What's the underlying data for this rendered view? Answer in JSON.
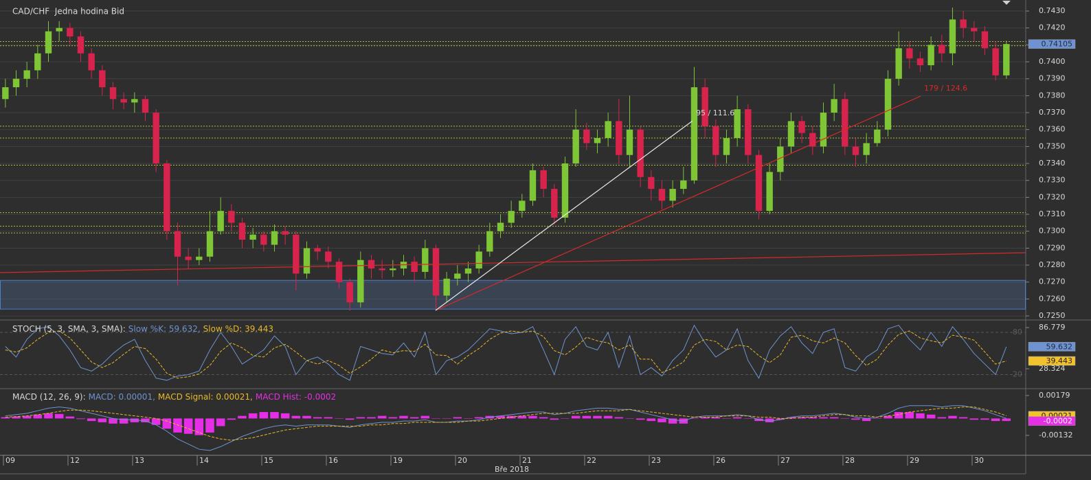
{
  "chart_data": [
    {
      "type": "candlestick",
      "title": "CAD/CHF  Jedna hodina Bid",
      "open": [
        0.7378,
        0.7385,
        0.739,
        0.7395,
        0.7405,
        0.7418,
        0.742,
        0.7415,
        0.7405,
        0.7395,
        0.7385,
        0.7378,
        0.7376,
        0.7378,
        0.737,
        0.734,
        0.73,
        0.7285,
        0.7283,
        0.7285,
        0.73,
        0.7312,
        0.7305,
        0.7295,
        0.7298,
        0.7292,
        0.73,
        0.7298,
        0.7275,
        0.729,
        0.7288,
        0.7282,
        0.727,
        0.7258,
        0.7283,
        0.7278,
        0.7277,
        0.7278,
        0.7282,
        0.7276,
        0.729,
        0.7262,
        0.7272,
        0.7275,
        0.7278,
        0.7288,
        0.73,
        0.7305,
        0.7312,
        0.7318,
        0.7336,
        0.7325,
        0.7308,
        0.734,
        0.736,
        0.7352,
        0.7355,
        0.7365,
        0.7345,
        0.736,
        0.7332,
        0.7325,
        0.7318,
        0.7325,
        0.733,
        0.7385,
        0.7362,
        0.7345,
        0.7355,
        0.7372,
        0.7345,
        0.7312,
        0.7335,
        0.735,
        0.7365,
        0.7358,
        0.735,
        0.737,
        0.7378,
        0.735,
        0.7345,
        0.7352,
        0.736,
        0.739,
        0.7408,
        0.7402,
        0.7398,
        0.741,
        0.7405,
        0.7425,
        0.742,
        0.7418,
        0.7408,
        0.7392
      ],
      "high": [
        0.739,
        0.7395,
        0.74,
        0.741,
        0.7424,
        0.7424,
        0.7423,
        0.7418,
        0.7408,
        0.7398,
        0.7388,
        0.7382,
        0.7382,
        0.738,
        0.7372,
        0.7342,
        0.7305,
        0.729,
        0.729,
        0.7312,
        0.732,
        0.7316,
        0.7308,
        0.7302,
        0.73,
        0.7304,
        0.7303,
        0.73,
        0.7294,
        0.7292,
        0.7291,
        0.7284,
        0.7272,
        0.7288,
        0.7286,
        0.7283,
        0.7283,
        0.7286,
        0.7285,
        0.7295,
        0.7292,
        0.7276,
        0.728,
        0.7282,
        0.7292,
        0.7305,
        0.731,
        0.7318,
        0.7322,
        0.734,
        0.7338,
        0.7328,
        0.7344,
        0.7372,
        0.7364,
        0.736,
        0.737,
        0.7378,
        0.738,
        0.7362,
        0.7336,
        0.733,
        0.733,
        0.7338,
        0.7397,
        0.739,
        0.7366,
        0.736,
        0.738,
        0.7375,
        0.7348,
        0.734,
        0.7355,
        0.737,
        0.7368,
        0.7362,
        0.7376,
        0.7387,
        0.7382,
        0.7355,
        0.7358,
        0.7365,
        0.7395,
        0.7418,
        0.7412,
        0.7406,
        0.7415,
        0.7416,
        0.7432,
        0.743,
        0.7424,
        0.7421,
        0.7412,
        0.74125
      ],
      "low": [
        0.7373,
        0.738,
        0.7385,
        0.739,
        0.74,
        0.7412,
        0.741,
        0.74,
        0.739,
        0.738,
        0.7372,
        0.7372,
        0.737,
        0.7365,
        0.7335,
        0.7295,
        0.7268,
        0.7278,
        0.728,
        0.7282,
        0.7298,
        0.73,
        0.729,
        0.729,
        0.7288,
        0.7288,
        0.7292,
        0.7265,
        0.7272,
        0.7283,
        0.7278,
        0.7266,
        0.7253,
        0.7255,
        0.7272,
        0.7272,
        0.7273,
        0.7274,
        0.727,
        0.7272,
        0.7254,
        0.7258,
        0.7268,
        0.727,
        0.7275,
        0.7285,
        0.7296,
        0.7302,
        0.7308,
        0.7315,
        0.732,
        0.7304,
        0.7305,
        0.7338,
        0.7348,
        0.7346,
        0.735,
        0.734,
        0.7338,
        0.7326,
        0.7318,
        0.7313,
        0.7314,
        0.7322,
        0.7328,
        0.7355,
        0.7338,
        0.734,
        0.735,
        0.734,
        0.7307,
        0.731,
        0.733,
        0.7346,
        0.7352,
        0.7345,
        0.7346,
        0.7365,
        0.7345,
        0.7338,
        0.734,
        0.735,
        0.7356,
        0.7386,
        0.7396,
        0.7394,
        0.7395,
        0.74,
        0.7398,
        0.7414,
        0.7412,
        0.7404,
        0.7389,
        0.739
      ],
      "close": [
        0.7385,
        0.739,
        0.7395,
        0.7405,
        0.7418,
        0.742,
        0.7415,
        0.7405,
        0.7395,
        0.7385,
        0.7378,
        0.7376,
        0.7378,
        0.737,
        0.734,
        0.73,
        0.7285,
        0.7283,
        0.7285,
        0.73,
        0.7312,
        0.7305,
        0.7295,
        0.7298,
        0.7292,
        0.73,
        0.7298,
        0.7275,
        0.729,
        0.7288,
        0.7282,
        0.727,
        0.7258,
        0.7283,
        0.7278,
        0.7277,
        0.7278,
        0.7282,
        0.7276,
        0.729,
        0.7262,
        0.7272,
        0.7275,
        0.7278,
        0.7288,
        0.73,
        0.7305,
        0.7312,
        0.7318,
        0.7336,
        0.7325,
        0.7308,
        0.734,
        0.736,
        0.7352,
        0.7355,
        0.7365,
        0.7345,
        0.736,
        0.7332,
        0.7325,
        0.7318,
        0.7325,
        0.733,
        0.7385,
        0.7362,
        0.7345,
        0.7355,
        0.7372,
        0.7345,
        0.7312,
        0.7335,
        0.735,
        0.7365,
        0.7358,
        0.735,
        0.737,
        0.7378,
        0.735,
        0.7345,
        0.7352,
        0.736,
        0.739,
        0.7408,
        0.7402,
        0.7398,
        0.741,
        0.7405,
        0.7425,
        0.742,
        0.7418,
        0.7408,
        0.7392,
        0.74105
      ],
      "up_color": "#7ec636",
      "down_color": "#d8244c",
      "xlim": [
        -0.5,
        94.8
      ],
      "xticks": [
        {
          "value": -0.5,
          "label": "09"
        },
        {
          "value": 5.5,
          "label": "12"
        },
        {
          "value": 11.5,
          "label": "13"
        },
        {
          "value": 17.5,
          "label": "14"
        },
        {
          "value": 23.5,
          "label": "15"
        },
        {
          "value": 29.5,
          "label": "16"
        },
        {
          "value": 35.5,
          "label": "19"
        },
        {
          "value": 41.5,
          "label": "20"
        },
        {
          "value": 47.5,
          "label": "21"
        },
        {
          "value": 53.5,
          "label": "22"
        },
        {
          "value": 59.5,
          "label": "23"
        },
        {
          "value": 65.5,
          "label": "26"
        },
        {
          "value": 71.5,
          "label": "27"
        },
        {
          "value": 77.5,
          "label": "28"
        },
        {
          "value": 83.5,
          "label": "29"
        },
        {
          "value": 89.5,
          "label": "30"
        }
      ],
      "xlabel": "Bře 2018",
      "ylim": [
        0.7248,
        0.74365
      ],
      "yticks": [
        {
          "value": 0.725,
          "label": "0.7250"
        },
        {
          "value": 0.726,
          "label": "0.7260"
        },
        {
          "value": 0.727,
          "label": "0.7270"
        },
        {
          "value": 0.728,
          "label": "0.7280"
        },
        {
          "value": 0.729,
          "label": "0.7290"
        },
        {
          "value": 0.73,
          "label": "0.7300"
        },
        {
          "value": 0.731,
          "label": "0.7310"
        },
        {
          "value": 0.732,
          "label": "0.7320"
        },
        {
          "value": 0.733,
          "label": "0.7330"
        },
        {
          "value": 0.734,
          "label": "0.7340"
        },
        {
          "value": 0.735,
          "label": "0.7350"
        },
        {
          "value": 0.736,
          "label": "0.7360"
        },
        {
          "value": 0.737,
          "label": "0.7370"
        },
        {
          "value": 0.738,
          "label": "0.7380"
        },
        {
          "value": 0.739,
          "label": "0.7390"
        },
        {
          "value": 0.74,
          "label": "0.7400"
        },
        {
          "value": 0.741,
          "label": "0.7410"
        },
        {
          "value": 0.742,
          "label": "0.7420"
        },
        {
          "value": 0.743,
          "label": "0.7430"
        }
      ],
      "grid": true,
      "levels": [
        0.7412,
        0.74095,
        0.7362,
        0.7355,
        0.7339,
        0.7311,
        0.7303,
        0.7299
      ],
      "level_color": "#b4bc3c",
      "zone": [
        0.7254,
        0.7271
      ],
      "annotations": [
        "95 / 111.6",
        "179 / 124.6"
      ]
    },
    {
      "type": "stochastic",
      "title": "STOCH (5, 3, SMA, 3, SMA):",
      "series": [
        {
          "name": "Slow %K: 59.632,",
          "color": "#6f93d0",
          "values": [
            60,
            45,
            70,
            85,
            88,
            75,
            55,
            30,
            25,
            35,
            50,
            62,
            70,
            40,
            15,
            12,
            18,
            20,
            25,
            55,
            80,
            60,
            35,
            45,
            55,
            75,
            60,
            20,
            40,
            45,
            35,
            20,
            12,
            60,
            55,
            50,
            48,
            65,
            45,
            80,
            20,
            40,
            45,
            55,
            70,
            85,
            82,
            78,
            80,
            88,
            55,
            20,
            70,
            88,
            60,
            55,
            80,
            30,
            75,
            20,
            30,
            18,
            40,
            55,
            90,
            65,
            45,
            55,
            85,
            40,
            15,
            55,
            75,
            88,
            65,
            50,
            80,
            85,
            30,
            25,
            45,
            55,
            85,
            90,
            70,
            55,
            80,
            60,
            88,
            70,
            50,
            35,
            20,
            59.632
          ]
        },
        {
          "name": "Slow %D: 39.443",
          "color": "#e8b92a",
          "values": [
            55,
            52,
            58,
            70,
            80,
            82,
            72,
            55,
            38,
            30,
            37,
            49,
            60,
            57,
            42,
            22,
            15,
            17,
            21,
            33,
            53,
            65,
            58,
            47,
            45,
            58,
            63,
            52,
            40,
            35,
            40,
            33,
            22,
            31,
            42,
            55,
            51,
            54,
            53,
            63,
            48,
            47,
            35,
            47,
            57,
            70,
            79,
            82,
            80,
            82,
            74,
            54,
            48,
            59,
            73,
            68,
            65,
            55,
            62,
            42,
            42,
            23,
            29,
            38,
            62,
            70,
            67,
            55,
            62,
            60,
            47,
            37,
            48,
            73,
            76,
            68,
            65,
            72,
            65,
            47,
            33,
            42,
            62,
            77,
            82,
            72,
            68,
            65,
            76,
            73,
            69,
            52,
            35,
            39.443
          ]
        }
      ],
      "ylim": [
        1.05,
        95.55
      ],
      "yticks": [
        86.779,
        28.324
      ],
      "levels": [
        80,
        20
      ]
    },
    {
      "type": "macd",
      "title": "MACD (12, 26, 9):",
      "series": [
        {
          "name": "MACD: 0.00001,",
          "color": "#6f93d0",
          "values": [
            0.0002,
            0.0003,
            0.0004,
            0.0006,
            0.0008,
            0.0009,
            0.0008,
            0.0006,
            0.0004,
            0.0002,
            0,
            -0.0001,
            -0.0001,
            -0.0002,
            -0.0005,
            -0.001,
            -0.0016,
            -0.002,
            -0.0024,
            -0.0025,
            -0.0022,
            -0.0018,
            -0.0014,
            -0.0011,
            -0.0008,
            -0.0006,
            -0.0005,
            -0.0006,
            -0.0005,
            -0.0005,
            -0.0005,
            -0.0006,
            -0.0007,
            -0.0005,
            -0.0004,
            -0.0003,
            -0.0003,
            -0.0002,
            -0.0002,
            -0.0001,
            -0.0003,
            -0.0003,
            -0.0002,
            -0.0002,
            -0.0001,
            0.0001,
            0.0002,
            0.0003,
            0.0004,
            0.0005,
            0.0005,
            0.0003,
            0.0004,
            0.0006,
            0.0007,
            0.0008,
            0.0008,
            0.0007,
            0.0007,
            0.0005,
            0.0003,
            0.0001,
            -0.0001,
            -0.0002,
            0.0001,
            0.0002,
            0.0002,
            0.0002,
            0.0003,
            0.0002,
            -0.0001,
            -0.0002,
            -0.0001,
            0.0001,
            0.0002,
            0.0002,
            0.0003,
            0.0004,
            0.0003,
            0.0001,
            0,
            0.0001,
            0.0004,
            0.0008,
            0.001,
            0.001,
            0.001,
            0.0009,
            0.001,
            0.001,
            0.0008,
            0.0006,
            0.0003,
            1e-05
          ]
        },
        {
          "name": "MACD Signal: 0.00021,",
          "color": "#e8b92a",
          "values": [
            0.0001,
            0.00015,
            0.0002,
            0.0003,
            0.0004,
            0.00055,
            0.00065,
            0.00065,
            0.0006,
            0.0005,
            0.0004,
            0.0003,
            0.0002,
            0.0001,
            0,
            -0.0002,
            -0.0005,
            -0.0008,
            -0.0011,
            -0.0014,
            -0.0016,
            -0.0017,
            -0.0016,
            -0.0015,
            -0.0013,
            -0.0011,
            -0.0009,
            -0.0008,
            -0.0007,
            -0.0006,
            -0.0006,
            -0.0006,
            -0.0006,
            -0.0006,
            -0.0005,
            -0.0005,
            -0.0004,
            -0.0004,
            -0.0003,
            -0.0003,
            -0.0003,
            -0.0003,
            -0.0003,
            -0.0002,
            -0.0002,
            -0.0001,
            0,
            0.0001,
            0.0002,
            0.0003,
            0.0004,
            0.0004,
            0.0004,
            0.0004,
            0.0005,
            0.0006,
            0.0006,
            0.0006,
            0.0007,
            0.0006,
            0.0005,
            0.0004,
            0.0003,
            0.0002,
            0.0001,
            0.0001,
            0.0001,
            0.0002,
            0.0002,
            0.0002,
            0.0001,
            0.0001,
            0,
            0,
            0.0001,
            0.0001,
            0.0002,
            0.0003,
            0.0003,
            0.0002,
            0.0002,
            0.0001,
            0.0002,
            0.0003,
            0.0005,
            0.0006,
            0.0007,
            0.0008,
            0.0008,
            0.0009,
            0.0009,
            0.0007,
            0.0005,
            0.00021
          ]
        },
        {
          "name": "MACD Hist: -0.0002",
          "color": "#e52ee5",
          "values": [
            0.0001,
            0.00015,
            0.0002,
            0.0003,
            0.0004,
            0.00035,
            0.00015,
            -5e-05,
            -0.0002,
            -0.0003,
            -0.0004,
            -0.0004,
            -0.0003,
            -0.0003,
            -0.0005,
            -0.0008,
            -0.0011,
            -0.0012,
            -0.0013,
            -0.0011,
            -0.0006,
            -0.0001,
            0.0002,
            0.0004,
            0.0005,
            0.0005,
            0.0004,
            0.0002,
            0.0002,
            0.0001,
            0.0001,
            0,
            -0.0001,
            0.0001,
            0.0001,
            0.0002,
            0.0001,
            0.0002,
            0.0001,
            0.0002,
            0,
            0,
            0.0001,
            0,
            0.0001,
            0.0002,
            0.0002,
            0.0002,
            0.0002,
            0.0002,
            0.0001,
            -0.0001,
            0,
            0.0002,
            0.0002,
            0.0002,
            0.0002,
            0.0001,
            0,
            -0.0001,
            -0.0002,
            -0.0003,
            -0.0004,
            -0.0004,
            0,
            0.0001,
            0.0001,
            0,
            0.0001,
            0,
            -0.0002,
            -0.0003,
            -0.0001,
            0.0001,
            0.0001,
            0.0001,
            0.0001,
            0.0001,
            0,
            -0.0001,
            -0.0002,
            0,
            0.0002,
            0.0005,
            0.0005,
            0.0004,
            0.0003,
            0.0001,
            0.0002,
            0.0001,
            -0.0001,
            -0.0001,
            -0.0002,
            -0.0002
          ]
        }
      ],
      "ylim": [
        -0.00282,
        0.00227
      ],
      "yticks": [
        0.00179,
        -0.00132
      ]
    }
  ]
}
